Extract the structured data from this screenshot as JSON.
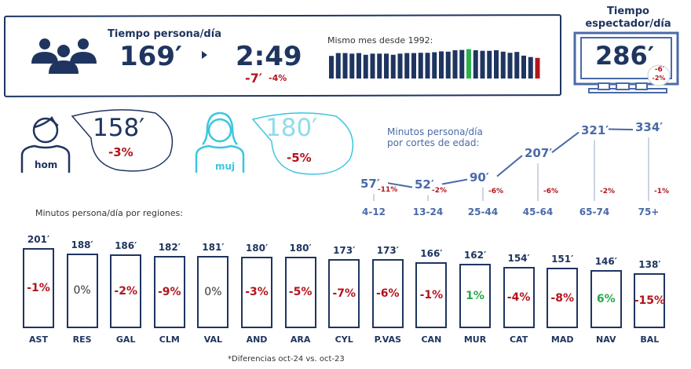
{
  "summary": {
    "title": "Tiempo persona/día",
    "minutes": "169′",
    "hours": "2:49",
    "diff_minutes": "-7′",
    "diff_pct": "-4%",
    "icon": "people-group-icon"
  },
  "history": {
    "label": "Mismo mes desde 1992:",
    "relative_heights": [
      80,
      90,
      90,
      88,
      90,
      84,
      88,
      88,
      88,
      84,
      88,
      90,
      90,
      91,
      91,
      93,
      96,
      95,
      100,
      101,
      104,
      100,
      98,
      98,
      100,
      95,
      91,
      94,
      81,
      76,
      73
    ],
    "highlight": {
      "max_index": 20,
      "last_index": 30
    },
    "colors": {
      "normal": "#1f3560",
      "max": "#2bb24c",
      "last": "#b3141c"
    }
  },
  "spectator": {
    "title_line1": "Tiempo",
    "title_line2": "espectador/día",
    "value": "286′",
    "diff_minutes": "-6′",
    "diff_pct": "-2%",
    "icon": "tv-icon"
  },
  "gender": {
    "men": {
      "label": "hom",
      "value": "158′",
      "diff": "-3%",
      "icon": "man-icon"
    },
    "women": {
      "label": "muj",
      "value": "180′",
      "diff": "-5%",
      "icon": "woman-icon",
      "color": "#3cc6e0"
    }
  },
  "ages": {
    "title_line1": "Minutos persona/día",
    "title_line2": "por cortes de edad:",
    "items": [
      {
        "label": "4-12",
        "value": "57′",
        "minutes": 57,
        "diff": "-11%"
      },
      {
        "label": "13-24",
        "value": "52′",
        "minutes": 52,
        "diff": "-2%"
      },
      {
        "label": "25-44",
        "value": "90′",
        "minutes": 90,
        "diff": "-6%"
      },
      {
        "label": "45-64",
        "value": "207′",
        "minutes": 207,
        "diff": "-6%"
      },
      {
        "label": "65-74",
        "value": "321′",
        "minutes": 321,
        "diff": "-2%"
      },
      {
        "label": "75+",
        "value": "334′",
        "minutes": 334,
        "diff": "-1%"
      }
    ]
  },
  "regions": {
    "title": "Minutos persona/día por regiones:",
    "items": [
      {
        "label": "AST",
        "value": "201′",
        "minutes": 201,
        "diff": "-1%",
        "trend": "down"
      },
      {
        "label": "RES",
        "value": "188′",
        "minutes": 188,
        "diff": "0%",
        "trend": "flat"
      },
      {
        "label": "GAL",
        "value": "186′",
        "minutes": 186,
        "diff": "-2%",
        "trend": "down"
      },
      {
        "label": "CLM",
        "value": "182′",
        "minutes": 182,
        "diff": "-9%",
        "trend": "down"
      },
      {
        "label": "VAL",
        "value": "181′",
        "minutes": 181,
        "diff": "0%",
        "trend": "flat"
      },
      {
        "label": "AND",
        "value": "180′",
        "minutes": 180,
        "diff": "-3%",
        "trend": "down"
      },
      {
        "label": "ARA",
        "value": "180′",
        "minutes": 180,
        "diff": "-5%",
        "trend": "down"
      },
      {
        "label": "CYL",
        "value": "173′",
        "minutes": 173,
        "diff": "-7%",
        "trend": "down"
      },
      {
        "label": "P.VAS",
        "value": "173′",
        "minutes": 173,
        "diff": "-6%",
        "trend": "down"
      },
      {
        "label": "CAN",
        "value": "166′",
        "minutes": 166,
        "diff": "-1%",
        "trend": "down"
      },
      {
        "label": "MUR",
        "value": "162′",
        "minutes": 162,
        "diff": "1%",
        "trend": "up"
      },
      {
        "label": "CAT",
        "value": "154′",
        "minutes": 154,
        "diff": "-4%",
        "trend": "down"
      },
      {
        "label": "MAD",
        "value": "151′",
        "minutes": 151,
        "diff": "-8%",
        "trend": "down"
      },
      {
        "label": "NAV",
        "value": "146′",
        "minutes": 146,
        "diff": "6%",
        "trend": "up"
      },
      {
        "label": "BAL",
        "value": "138′",
        "minutes": 138,
        "diff": "-15%",
        "trend": "down"
      }
    ]
  },
  "footnote": "*Diferencias oct-24 vs. oct-23"
}
